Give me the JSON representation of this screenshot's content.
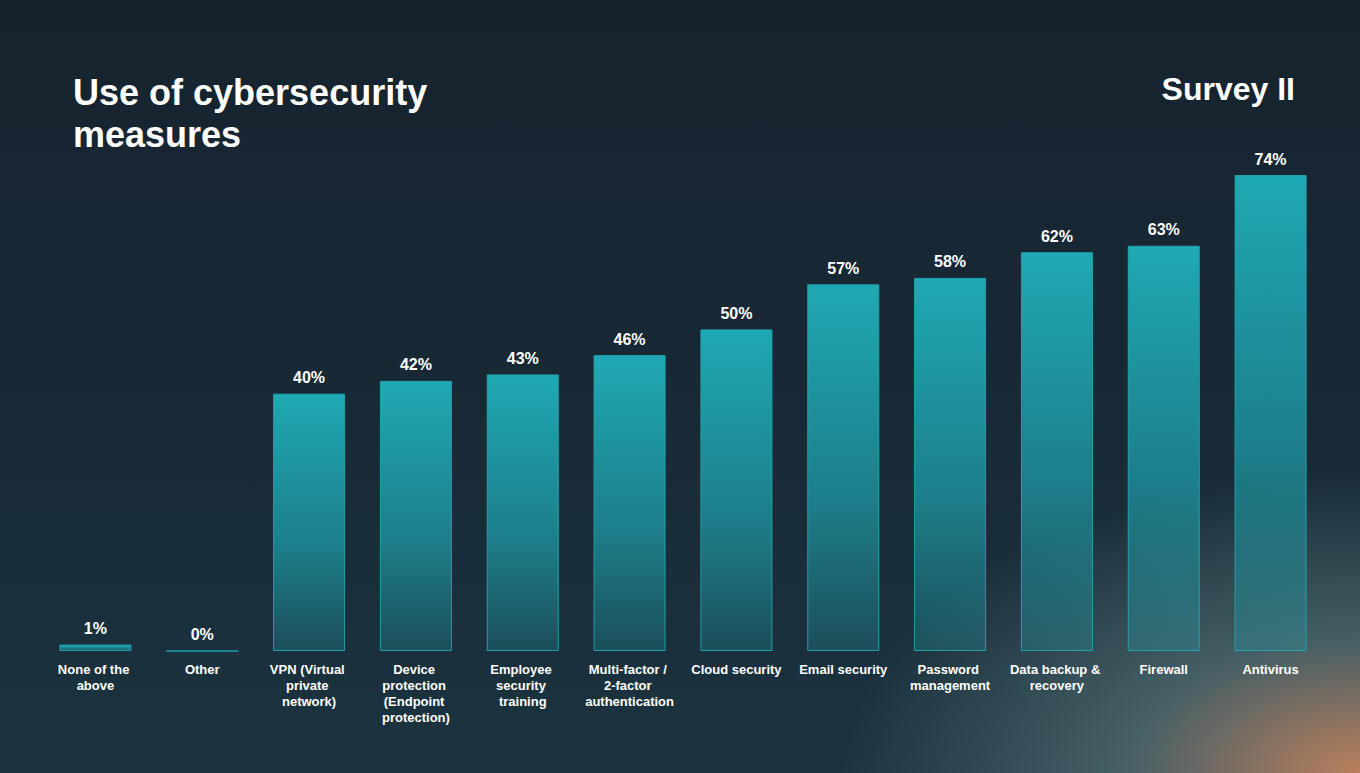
{
  "chart_data": {
    "type": "bar",
    "title": "Use of cybersecurity measures",
    "subtitle": "Survey II",
    "categories": [
      "None of the above",
      "Other",
      "VPN (Virtual private network)",
      "Device protection (Endpoint protection)",
      "Employee security training",
      "Multi-factor / 2-factor authentication",
      "Cloud security",
      "Email security",
      "Password management",
      "Data backup & recovery",
      "Firewall",
      "Antivirus"
    ],
    "values": [
      1,
      0,
      40,
      42,
      43,
      46,
      50,
      57,
      58,
      62,
      63,
      74
    ],
    "value_labels": [
      "1%",
      "0%",
      "40%",
      "42%",
      "43%",
      "46%",
      "50%",
      "57%",
      "58%",
      "62%",
      "63%",
      "74%"
    ],
    "color": "#1fa9b4",
    "ylim": [
      0,
      74
    ],
    "grid": false,
    "data_labels": true,
    "tick_labels": "x"
  }
}
